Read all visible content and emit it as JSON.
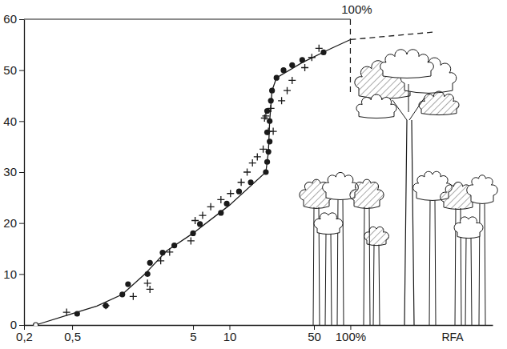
{
  "chart_data": {
    "type": "scatter",
    "x_label": "RFA",
    "log": "x",
    "grid": false,
    "xlim": [
      0.2,
      1500
    ],
    "ylim": [
      0,
      60
    ],
    "xticks": [
      {
        "value": 0.2,
        "label": "0,2"
      },
      {
        "value": 0.5,
        "label": "0,5"
      },
      5,
      10,
      50,
      {
        "value": 100,
        "label": "100%"
      }
    ],
    "yticks": [
      0,
      10,
      20,
      30,
      40,
      50,
      60
    ],
    "series": [
      {
        "type": "line",
        "line_style": "solid",
        "marker": "none",
        "color": "#1a1a1a",
        "x": [
          0.25,
          0.5,
          0.8,
          1.3,
          2,
          3,
          5,
          10,
          20,
          20.5,
          21,
          21.5,
          22.5,
          24.5,
          40,
          70,
          100
        ],
        "values": [
          0,
          2.2,
          3.7,
          6,
          10,
          14.5,
          18,
          23.5,
          30,
          32,
          34,
          40,
          46,
          48.5,
          51.5,
          54.3,
          56
        ]
      },
      {
        "type": "line",
        "line_style": "dashed",
        "marker": "none",
        "color": "#1a1a1a",
        "x": [
          100,
          500
        ],
        "values": [
          56,
          57.5
        ]
      },
      {
        "type": "scatter",
        "marker": "open-circle",
        "color": "#1a1a1a",
        "x": [
          0.25
        ],
        "values": [
          0
        ]
      },
      {
        "type": "scatter",
        "marker": "dot",
        "color": "#1a1a1a",
        "x": [
          0.55,
          0.95,
          1.3,
          1.45,
          2.1,
          2.2,
          2.8,
          3.5,
          5,
          5.7,
          8.5,
          9.5,
          12,
          15,
          20,
          20.5,
          21,
          21.5,
          20.5,
          21.5,
          20.5,
          22,
          22.5,
          24.5,
          28,
          33,
          40,
          60
        ],
        "values": [
          2.2,
          3.8,
          6,
          8,
          10,
          12.2,
          14.2,
          15.6,
          18,
          19.8,
          22,
          23.8,
          26.2,
          28,
          30,
          32,
          34,
          36,
          37.8,
          40,
          42,
          44,
          46,
          48.5,
          50,
          51,
          52,
          53.5
        ]
      },
      {
        "type": "scatter",
        "marker": "cross",
        "color": "#1a1a1a",
        "x": [
          0.45,
          0.95,
          1.6,
          2.1,
          2.2,
          2.7,
          3.2,
          4.8,
          5.2,
          6,
          7,
          8.5,
          10.2,
          12.5,
          14,
          15.5,
          17,
          19,
          19.5,
          21,
          23,
          20,
          22,
          27,
          30,
          33,
          42,
          48,
          55
        ],
        "values": [
          2.5,
          3.8,
          5.6,
          8.2,
          7,
          12.6,
          14.3,
          16.5,
          20.5,
          21.5,
          23.2,
          24.6,
          25.8,
          28,
          30,
          31.8,
          33,
          34.5,
          40.6,
          38,
          38,
          41,
          42.5,
          44,
          46,
          48,
          50.5,
          52.5,
          54.3
        ]
      }
    ],
    "reference_lines": [
      {
        "y": 60,
        "x_from": 0.2,
        "x_to": 100,
        "line_style": "solid"
      },
      {
        "x": 100,
        "y_from": 60,
        "y_to": 45,
        "line_style": "dashed"
      }
    ],
    "annotations": [
      {
        "text": "100%",
        "x": 100,
        "y": 60
      }
    ]
  }
}
